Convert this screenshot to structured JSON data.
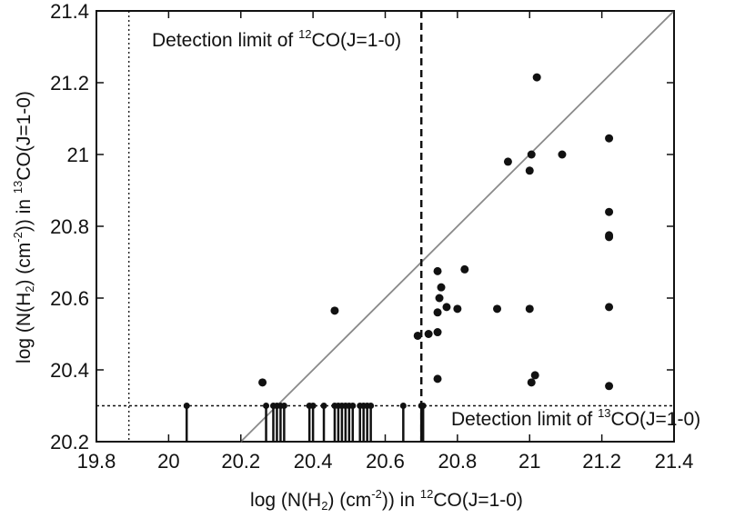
{
  "chart_data": {
    "type": "scatter",
    "xlabel": {
      "prefix": "log (N(H",
      "sub": "2",
      "mid": ") (cm",
      "sup": "-2",
      "mid2": ")) in ",
      "isotope": "12",
      "suffix": "CO(J=1-0)"
    },
    "ylabel": {
      "prefix": "log (N(H",
      "sub": "2",
      "mid": ") (cm",
      "sup": "-2",
      "mid2": ")) in  ",
      "isotope": "13",
      "suffix": "CO(J=1-0)"
    },
    "xlim": [
      19.8,
      21.4
    ],
    "ylim": [
      20.2,
      21.4
    ],
    "xticks": [
      "19.8",
      "20",
      "20.2",
      "20.4",
      "20.6",
      "20.8",
      "21",
      "21.2",
      "21.4"
    ],
    "yticks": [
      "20.2",
      "20.4",
      "20.6",
      "20.8",
      "21",
      "21.2",
      "21.4"
    ],
    "detection_limit_12co": 20.7,
    "detection_limit_13co": 20.3,
    "left_dotted_line_x": 19.89,
    "annotation_12co": {
      "prefix": "Detection limit of ",
      "isotope": "12",
      "suffix": "CO(J=1-0)"
    },
    "annotation_13co": {
      "prefix": "Detection limit of ",
      "isotope": "13",
      "suffix": "CO(J=1-0)"
    },
    "one_to_one_line": [
      [
        20.2,
        20.2
      ],
      [
        21.4,
        21.4
      ]
    ],
    "points": [
      [
        20.26,
        20.365
      ],
      [
        20.46,
        20.565
      ],
      [
        20.69,
        20.495
      ],
      [
        20.72,
        20.5
      ],
      [
        20.745,
        20.505
      ],
      [
        20.745,
        20.56
      ],
      [
        20.745,
        20.675
      ],
      [
        20.755,
        20.63
      ],
      [
        20.75,
        20.6
      ],
      [
        20.745,
        20.375
      ],
      [
        20.77,
        20.575
      ],
      [
        20.8,
        20.57
      ],
      [
        20.82,
        20.68
      ],
      [
        20.91,
        20.57
      ],
      [
        20.94,
        20.98
      ],
      [
        21.0,
        20.955
      ],
      [
        21.005,
        21.0
      ],
      [
        21.0,
        20.57
      ],
      [
        21.005,
        20.365
      ],
      [
        21.015,
        20.385
      ],
      [
        21.02,
        21.215
      ],
      [
        21.09,
        21.0
      ],
      [
        21.22,
        21.045
      ],
      [
        21.22,
        20.84
      ],
      [
        21.22,
        20.77
      ],
      [
        21.22,
        20.775
      ],
      [
        21.22,
        20.575
      ],
      [
        21.22,
        20.355
      ]
    ],
    "upper_limits": [
      20.05,
      20.27,
      20.29,
      20.3,
      20.31,
      20.32,
      20.39,
      20.4,
      20.43,
      20.46,
      20.47,
      20.48,
      20.49,
      20.5,
      20.51,
      20.53,
      20.54,
      20.55,
      20.56,
      20.65,
      20.7,
      20.705
    ],
    "colors": {
      "axes": "#111111",
      "line": "#8a8a8a",
      "points": "#111111"
    }
  }
}
